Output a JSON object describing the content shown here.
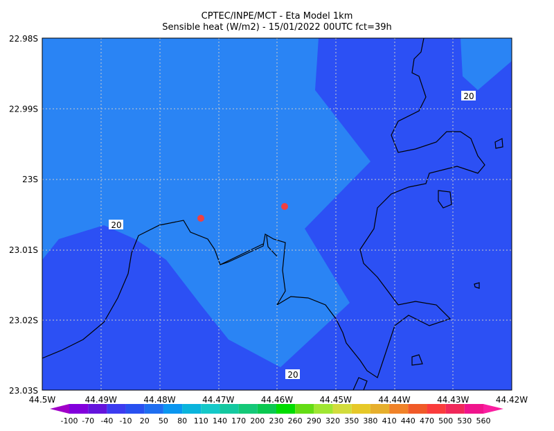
{
  "header": {
    "title": "CPTEC/INPE/MCT -  Eta Model 1km",
    "subtitle": "Sensible heat (W/m2) - 15/01/2022 00UTC fct=39h"
  },
  "map": {
    "lat_labels": [
      "22.98S",
      "22.99S",
      "23S",
      "23.01S",
      "23.02S",
      "23.03S"
    ],
    "lon_labels": [
      "44.5W",
      "44.49W",
      "44.48W",
      "44.47W",
      "44.46W",
      "44.45W",
      "44.44W",
      "44.43W",
      "44.42W"
    ],
    "contour_labels": [
      "20",
      "20",
      "20"
    ]
  },
  "colorbar": {
    "labels": [
      "-100",
      "-70",
      "-40",
      "-10",
      "20",
      "50",
      "80",
      "110",
      "140",
      "170",
      "200",
      "230",
      "260",
      "290",
      "320",
      "350",
      "380",
      "410",
      "440",
      "470",
      "500",
      "530",
      "560"
    ],
    "colors": [
      "#a000c8",
      "#8200dc",
      "#6414dc",
      "#3c3cf0",
      "#2850f0",
      "#1e6ef0",
      "#0a96f0",
      "#0ab4dc",
      "#14c8c8",
      "#14c8a0",
      "#14c878",
      "#0ac850",
      "#00dc00",
      "#64dc14",
      "#a0e632",
      "#d2dc3c",
      "#e6c828",
      "#e6af2d",
      "#f08228",
      "#f05a28",
      "#fa3c3c",
      "#f0285a",
      "#f0148c",
      "#fa1ea0"
    ]
  }
}
